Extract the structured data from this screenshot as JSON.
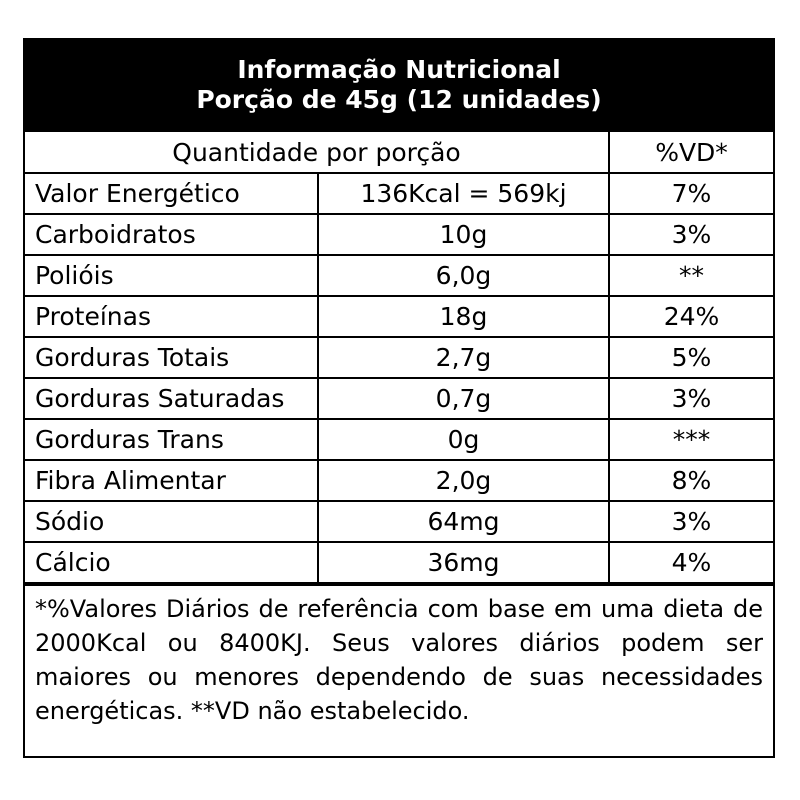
{
  "header": {
    "title": "Informação Nutricional",
    "subtitle": "Porção de 45g (12 unidades)"
  },
  "table": {
    "quantity_header": "Quantidade por porção",
    "vd_header": "%VD*",
    "rows": [
      {
        "name": "Valor Energético",
        "amount": "136Kcal = 569kj",
        "vd": "7%"
      },
      {
        "name": "Carboidratos",
        "amount": "10g",
        "vd": "3%"
      },
      {
        "name": "Polióis",
        "amount": "6,0g",
        "vd": "**"
      },
      {
        "name": "Proteínas",
        "amount": "18g",
        "vd": "24%"
      },
      {
        "name": "Gorduras Totais",
        "amount": "2,7g",
        "vd": "5%"
      },
      {
        "name": "Gorduras Saturadas",
        "amount": "0,7g",
        "vd": "3%"
      },
      {
        "name": "Gorduras Trans",
        "amount": "0g",
        "vd": "***"
      },
      {
        "name": "Fibra Alimentar",
        "amount": "2,0g",
        "vd": "8%"
      },
      {
        "name": "Sódio",
        "amount": "64mg",
        "vd": "3%"
      },
      {
        "name": "Cálcio",
        "amount": "36mg",
        "vd": "4%"
      }
    ]
  },
  "footnote": "*%Valores Diários de referência com base em uma dieta de 2000Kcal ou 8400KJ. Seus valores diários podem ser maiores ou menores dependendo de suas necessidades energéticas. **VD não estabelecido."
}
